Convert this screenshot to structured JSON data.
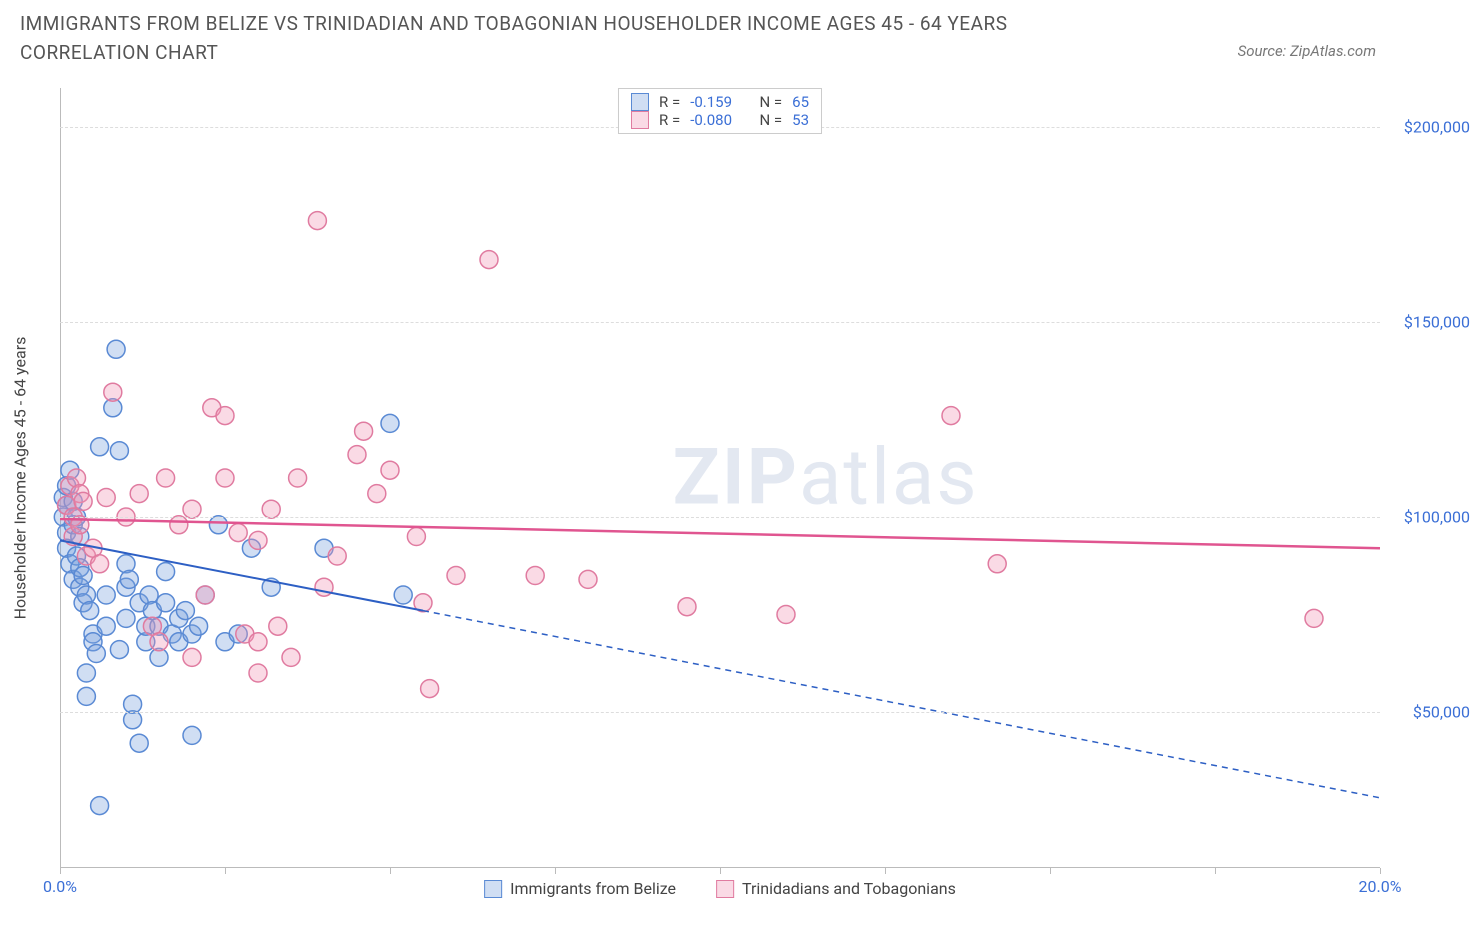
{
  "title": "IMMIGRANTS FROM BELIZE VS TRINIDADIAN AND TOBAGONIAN HOUSEHOLDER INCOME AGES 45 - 64 YEARS CORRELATION CHART",
  "source_label": "Source: ZipAtlas.com",
  "ylabel": "Householder Income Ages 45 - 64 years",
  "watermark_bold": "ZIP",
  "watermark_rest": "atlas",
  "chart": {
    "type": "scatter",
    "xlim": [
      0,
      20
    ],
    "ylim": [
      10000,
      210000
    ],
    "x_ticks": [
      0,
      2.5,
      5,
      7.5,
      10,
      12.5,
      15,
      17.5,
      20
    ],
    "x_tick_labels": {
      "0": "0.0%",
      "20": "20.0%"
    },
    "y_ticks": [
      50000,
      100000,
      150000,
      200000
    ],
    "y_tick_labels": [
      "$50,000",
      "$100,000",
      "$150,000",
      "$200,000"
    ],
    "grid_color": "#dddddd",
    "background_color": "#ffffff",
    "axis_color": "#bbbbbb",
    "label_color": "#444444",
    "tick_label_color": "#3b6fd6",
    "title_fontsize": 19,
    "label_fontsize": 16,
    "series": [
      {
        "name": "Immigrants from Belize",
        "color_fill": "rgba(120,160,220,0.35)",
        "color_stroke": "#5a8ad4",
        "marker_radius": 9,
        "R": "-0.159",
        "N": "65",
        "trend": {
          "x1": 0,
          "y1": 94000,
          "x2": 5.5,
          "y2": 76000,
          "solid": true,
          "dash_x2": 20,
          "dash_y2": 28000,
          "color": "#2d5fc4",
          "width": 2
        },
        "points": [
          [
            0.05,
            100000
          ],
          [
            0.05,
            105000
          ],
          [
            0.1,
            96000
          ],
          [
            0.1,
            103000
          ],
          [
            0.1,
            108000
          ],
          [
            0.1,
            92000
          ],
          [
            0.15,
            112000
          ],
          [
            0.15,
            88000
          ],
          [
            0.2,
            98000
          ],
          [
            0.2,
            84000
          ],
          [
            0.2,
            104000
          ],
          [
            0.25,
            100000
          ],
          [
            0.25,
            90000
          ],
          [
            0.3,
            95000
          ],
          [
            0.3,
            82000
          ],
          [
            0.3,
            87000
          ],
          [
            0.35,
            78000
          ],
          [
            0.35,
            85000
          ],
          [
            0.4,
            80000
          ],
          [
            0.4,
            60000
          ],
          [
            0.4,
            54000
          ],
          [
            0.45,
            76000
          ],
          [
            0.5,
            70000
          ],
          [
            0.5,
            68000
          ],
          [
            0.55,
            65000
          ],
          [
            0.6,
            26000
          ],
          [
            0.6,
            118000
          ],
          [
            0.7,
            72000
          ],
          [
            0.7,
            80000
          ],
          [
            0.8,
            128000
          ],
          [
            0.85,
            143000
          ],
          [
            0.9,
            66000
          ],
          [
            0.9,
            117000
          ],
          [
            1.0,
            82000
          ],
          [
            1.0,
            74000
          ],
          [
            1.0,
            88000
          ],
          [
            1.05,
            84000
          ],
          [
            1.1,
            48000
          ],
          [
            1.1,
            52000
          ],
          [
            1.2,
            42000
          ],
          [
            1.2,
            78000
          ],
          [
            1.3,
            68000
          ],
          [
            1.3,
            72000
          ],
          [
            1.35,
            80000
          ],
          [
            1.4,
            76000
          ],
          [
            1.5,
            64000
          ],
          [
            1.5,
            72000
          ],
          [
            1.6,
            86000
          ],
          [
            1.6,
            78000
          ],
          [
            1.7,
            70000
          ],
          [
            1.8,
            74000
          ],
          [
            1.8,
            68000
          ],
          [
            1.9,
            76000
          ],
          [
            2.0,
            70000
          ],
          [
            2.0,
            44000
          ],
          [
            2.1,
            72000
          ],
          [
            2.2,
            80000
          ],
          [
            2.4,
            98000
          ],
          [
            2.5,
            68000
          ],
          [
            2.7,
            70000
          ],
          [
            2.9,
            92000
          ],
          [
            3.2,
            82000
          ],
          [
            4.0,
            92000
          ],
          [
            5.0,
            124000
          ],
          [
            5.2,
            80000
          ]
        ]
      },
      {
        "name": "Trinidadians and Tobagonians",
        "color_fill": "rgba(240,150,180,0.35)",
        "color_stroke": "#e07ba0",
        "marker_radius": 9,
        "R": "-0.080",
        "N": "53",
        "trend": {
          "x1": 0,
          "y1": 99500,
          "x2": 20,
          "y2": 92000,
          "solid": true,
          "color": "#e05590",
          "width": 2.5
        },
        "points": [
          [
            0.1,
            103000
          ],
          [
            0.15,
            108000
          ],
          [
            0.2,
            100000
          ],
          [
            0.2,
            95000
          ],
          [
            0.25,
            110000
          ],
          [
            0.3,
            106000
          ],
          [
            0.3,
            98000
          ],
          [
            0.35,
            104000
          ],
          [
            0.4,
            90000
          ],
          [
            0.5,
            92000
          ],
          [
            0.6,
            88000
          ],
          [
            0.7,
            105000
          ],
          [
            0.8,
            132000
          ],
          [
            1.0,
            100000
          ],
          [
            1.2,
            106000
          ],
          [
            1.4,
            72000
          ],
          [
            1.5,
            68000
          ],
          [
            1.6,
            110000
          ],
          [
            1.8,
            98000
          ],
          [
            2.0,
            102000
          ],
          [
            2.2,
            80000
          ],
          [
            2.3,
            128000
          ],
          [
            2.5,
            110000
          ],
          [
            2.5,
            126000
          ],
          [
            2.7,
            96000
          ],
          [
            2.8,
            70000
          ],
          [
            3.0,
            68000
          ],
          [
            3.0,
            94000
          ],
          [
            3.2,
            102000
          ],
          [
            3.3,
            72000
          ],
          [
            3.5,
            64000
          ],
          [
            3.6,
            110000
          ],
          [
            3.9,
            176000
          ],
          [
            4.0,
            82000
          ],
          [
            4.2,
            90000
          ],
          [
            4.5,
            116000
          ],
          [
            4.6,
            122000
          ],
          [
            4.8,
            106000
          ],
          [
            5.0,
            112000
          ],
          [
            5.4,
            95000
          ],
          [
            5.5,
            78000
          ],
          [
            5.6,
            56000
          ],
          [
            6.0,
            85000
          ],
          [
            6.5,
            166000
          ],
          [
            7.2,
            85000
          ],
          [
            8.0,
            84000
          ],
          [
            9.5,
            77000
          ],
          [
            11.0,
            75000
          ],
          [
            13.5,
            126000
          ],
          [
            14.2,
            88000
          ],
          [
            19.0,
            74000
          ],
          [
            3.0,
            60000
          ],
          [
            2.0,
            64000
          ]
        ]
      }
    ]
  },
  "legend_top": {
    "rows": [
      {
        "swatch_fill": "rgba(120,160,220,0.35)",
        "swatch_stroke": "#5a8ad4",
        "r_label": "R =",
        "r_val": "-0.159",
        "n_label": "N =",
        "n_val": "65"
      },
      {
        "swatch_fill": "rgba(240,150,180,0.35)",
        "swatch_stroke": "#e07ba0",
        "r_label": "R =",
        "r_val": "-0.080",
        "n_label": "N =",
        "n_val": "53"
      }
    ]
  },
  "legend_bottom": {
    "items": [
      {
        "swatch_fill": "rgba(120,160,220,0.35)",
        "swatch_stroke": "#5a8ad4",
        "label": "Immigrants from Belize"
      },
      {
        "swatch_fill": "rgba(240,150,180,0.35)",
        "swatch_stroke": "#e07ba0",
        "label": "Trinidadians and Tobagonians"
      }
    ]
  }
}
